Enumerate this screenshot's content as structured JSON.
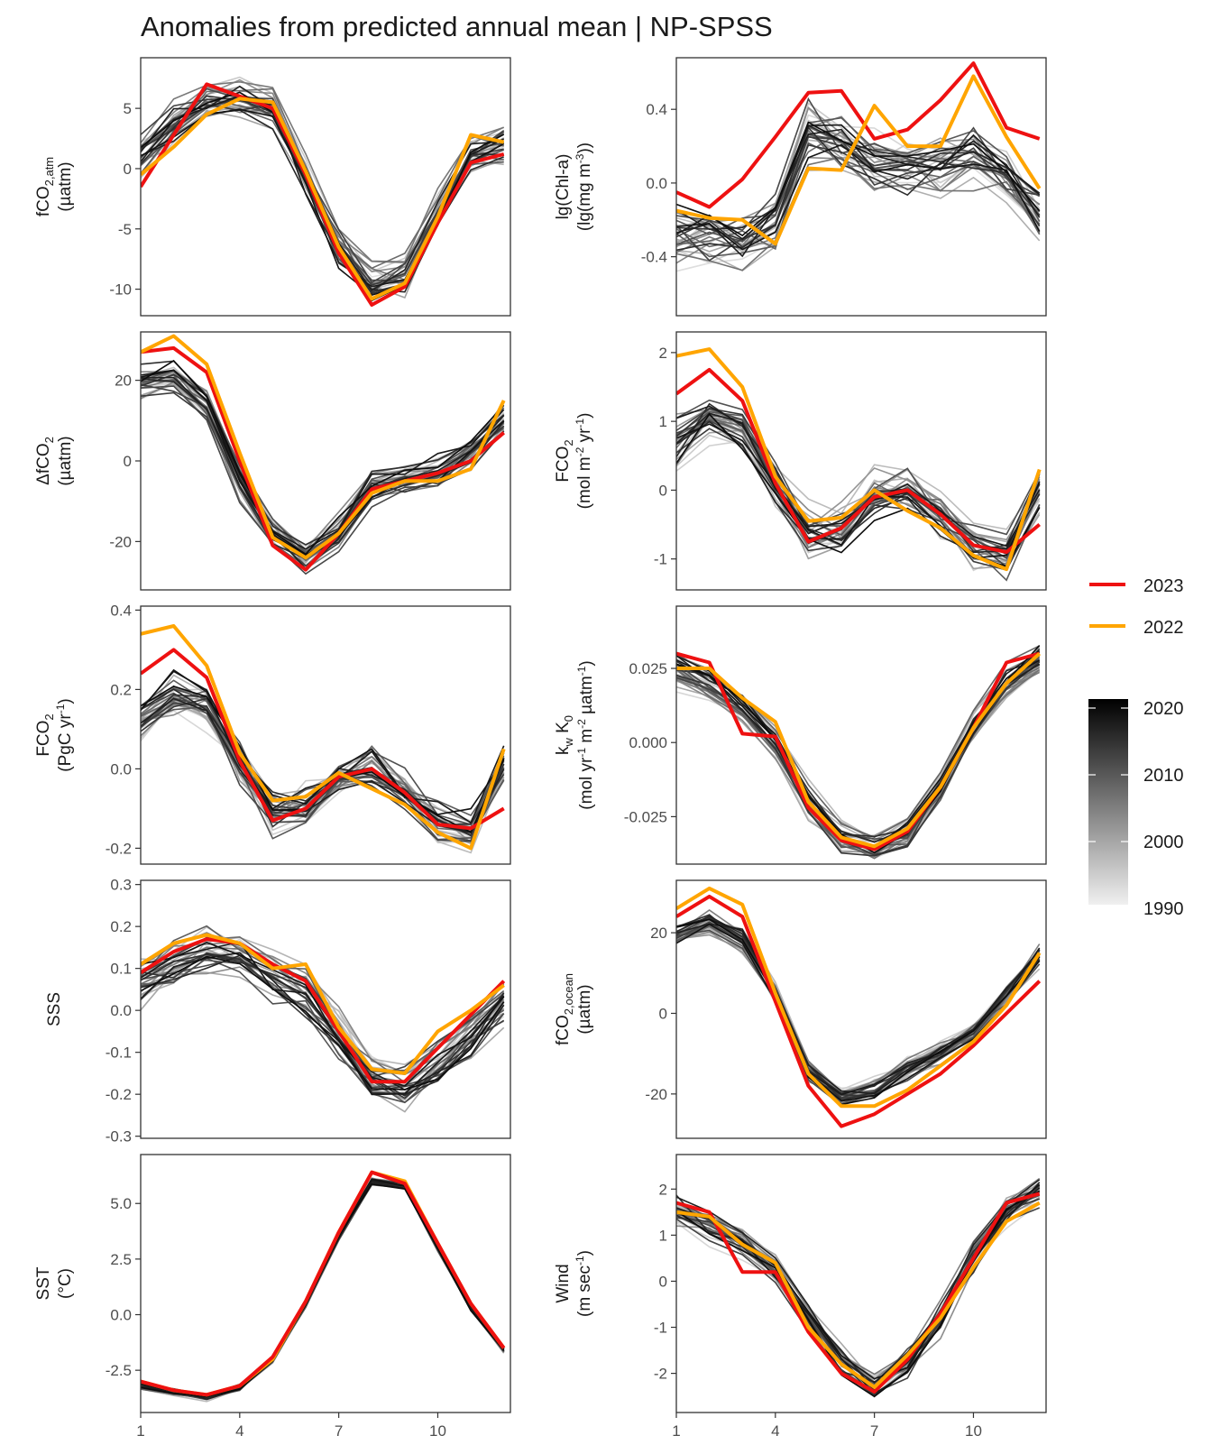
{
  "title": "Anomalies from predicted annual mean | NP-SPSS",
  "legend": {
    "entries": [
      {
        "label": "2023",
        "color": "#ee1111"
      },
      {
        "label": "2022",
        "color": "#ffa500"
      }
    ],
    "colorbar": {
      "labels": [
        "2020",
        "2010",
        "2000",
        "1990"
      ],
      "low_color": "#f0f0f0",
      "high_color": "#000000",
      "range": [
        1990,
        2021
      ]
    }
  },
  "x_ticks": [
    "1",
    "4",
    "7",
    "10"
  ],
  "chart_data": [
    {
      "type": "line",
      "panel": "fCO2atm",
      "ylabel": [
        "fCO",
        "2,atm",
        "(µatm)"
      ],
      "ylim": [
        -12.2,
        9.2
      ],
      "yticks": [
        -10,
        -5,
        0,
        5
      ],
      "ytick_labels": [
        "-10",
        "-5",
        "0",
        "5"
      ],
      "x": [
        1,
        2,
        3,
        4,
        5,
        6,
        7,
        8,
        9,
        10,
        11,
        12
      ],
      "mean": [
        1.0,
        3.5,
        5.2,
        5.8,
        5.0,
        -0.5,
        -6.5,
        -9.5,
        -9.0,
        -4.0,
        1.0,
        2.0
      ],
      "spread": 1.6,
      "series": [
        {
          "name": "2023",
          "values": [
            -1.5,
            2.8,
            7.0,
            6.0,
            5.0,
            -0.5,
            -7.0,
            -11.3,
            -9.8,
            -4.5,
            0.5,
            1.2
          ]
        },
        {
          "name": "2022",
          "values": [
            -0.5,
            1.8,
            4.5,
            5.8,
            5.5,
            -0.2,
            -6.5,
            -10.8,
            -9.5,
            -4.0,
            2.8,
            2.2
          ]
        }
      ]
    },
    {
      "type": "line",
      "panel": "Chl",
      "ylabel": [
        "lg(Chl-a)",
        "(lg(mg m-3))"
      ],
      "ylim": [
        -0.72,
        0.68
      ],
      "yticks": [
        -0.4,
        0.0,
        0.4
      ],
      "ytick_labels": [
        "-0.4",
        "0.0",
        "0.4"
      ],
      "x": [
        1,
        2,
        3,
        4,
        5,
        6,
        7,
        8,
        9,
        10,
        11,
        12
      ],
      "mean": [
        -0.3,
        -0.3,
        -0.33,
        -0.22,
        0.28,
        0.22,
        0.1,
        0.08,
        0.08,
        0.15,
        0.05,
        -0.2
      ],
      "spread": 0.16,
      "series": [
        {
          "name": "2023",
          "values": [
            -0.05,
            -0.13,
            0.02,
            0.25,
            0.49,
            0.5,
            0.24,
            0.29,
            0.45,
            0.65,
            0.3,
            0.24
          ]
        },
        {
          "name": "2022",
          "values": [
            -0.15,
            -0.19,
            -0.2,
            -0.33,
            0.08,
            0.07,
            0.42,
            0.2,
            0.2,
            0.58,
            0.25,
            -0.03
          ]
        }
      ]
    },
    {
      "type": "line",
      "panel": "dfCO2",
      "ylabel": [
        "ΔfCO",
        "2",
        "(µatm)"
      ],
      "ylim": [
        -32,
        32
      ],
      "yticks": [
        -20,
        0,
        20
      ],
      "ytick_labels": [
        "-20",
        "0",
        "20"
      ],
      "x": [
        1,
        2,
        3,
        4,
        5,
        6,
        7,
        8,
        9,
        10,
        11,
        12
      ],
      "mean": [
        19,
        21,
        14,
        -5,
        -18,
        -24,
        -18,
        -6,
        -4,
        -3,
        2,
        10
      ],
      "spread": 4,
      "series": [
        {
          "name": "2023",
          "values": [
            27,
            28,
            22,
            0,
            -21,
            -27,
            -18,
            -7,
            -5,
            -3,
            0,
            7
          ]
        },
        {
          "name": "2022",
          "values": [
            27,
            31,
            24,
            2,
            -19,
            -24,
            -18,
            -8,
            -5,
            -5,
            -2,
            15
          ]
        }
      ]
    },
    {
      "type": "line",
      "panel": "FCO2mol",
      "ylabel": [
        "FCO",
        "2",
        "(mol m-2 yr-1)"
      ],
      "ylim": [
        -1.45,
        2.3
      ],
      "yticks": [
        -1,
        0,
        1,
        2
      ],
      "ytick_labels": [
        "-1",
        "0",
        "1",
        "2"
      ],
      "x": [
        1,
        2,
        3,
        4,
        5,
        6,
        7,
        8,
        9,
        10,
        11,
        12
      ],
      "mean": [
        0.7,
        1.1,
        0.9,
        0.1,
        -0.6,
        -0.55,
        -0.05,
        0.05,
        -0.35,
        -0.8,
        -0.9,
        0.0
      ],
      "spread": 0.35,
      "series": [
        {
          "name": "2023",
          "values": [
            1.4,
            1.75,
            1.3,
            0.1,
            -0.75,
            -0.55,
            -0.1,
            0.0,
            -0.35,
            -0.8,
            -0.9,
            -0.5
          ]
        },
        {
          "name": "2022",
          "values": [
            1.95,
            2.05,
            1.5,
            0.2,
            -0.45,
            -0.4,
            0.0,
            -0.3,
            -0.55,
            -0.95,
            -1.15,
            0.3
          ]
        }
      ]
    },
    {
      "type": "line",
      "panel": "FCO2PgC",
      "ylabel": [
        "FCO",
        "2",
        "(PgC yr-1)"
      ],
      "ylim": [
        -0.24,
        0.41
      ],
      "yticks": [
        -0.2,
        0.0,
        0.2,
        0.4
      ],
      "ytick_labels": [
        "-0.2",
        "0.0",
        "0.2",
        "0.4"
      ],
      "x": [
        1,
        2,
        3,
        4,
        5,
        6,
        7,
        8,
        9,
        10,
        11,
        12
      ],
      "mean": [
        0.12,
        0.18,
        0.15,
        0.01,
        -0.11,
        -0.1,
        -0.02,
        0.0,
        -0.06,
        -0.14,
        -0.16,
        0.0
      ],
      "spread": 0.06,
      "series": [
        {
          "name": "2023",
          "values": [
            0.24,
            0.3,
            0.23,
            0.02,
            -0.13,
            -0.1,
            -0.02,
            0.0,
            -0.06,
            -0.14,
            -0.15,
            -0.1
          ]
        },
        {
          "name": "2022",
          "values": [
            0.34,
            0.36,
            0.26,
            0.04,
            -0.08,
            -0.07,
            -0.01,
            -0.05,
            -0.09,
            -0.16,
            -0.2,
            0.05
          ]
        }
      ]
    },
    {
      "type": "line",
      "panel": "kwK0",
      "ylabel": [
        "kw K0",
        "(mol yr-1 m-2 µatm-1)"
      ],
      "ylim": [
        -0.041,
        0.046
      ],
      "yticks": [
        -0.025,
        0.0,
        0.025
      ],
      "ytick_labels": [
        "-0.025",
        "0.000",
        "0.025"
      ],
      "x": [
        1,
        2,
        3,
        4,
        5,
        6,
        7,
        8,
        9,
        10,
        11,
        12
      ],
      "mean": [
        0.025,
        0.02,
        0.012,
        0.0,
        -0.02,
        -0.032,
        -0.035,
        -0.03,
        -0.015,
        0.005,
        0.02,
        0.028
      ],
      "spread": 0.005,
      "series": [
        {
          "name": "2023",
          "values": [
            0.03,
            0.027,
            0.003,
            0.002,
            -0.022,
            -0.033,
            -0.036,
            -0.03,
            -0.015,
            0.005,
            0.027,
            0.03
          ]
        },
        {
          "name": "2022",
          "values": [
            0.025,
            0.025,
            0.015,
            0.007,
            -0.02,
            -0.032,
            -0.035,
            -0.029,
            -0.015,
            0.005,
            0.02,
            0.03
          ]
        }
      ]
    },
    {
      "type": "line",
      "panel": "SSS",
      "ylabel": [
        "SSS"
      ],
      "ylim": [
        -0.305,
        0.31
      ],
      "yticks": [
        -0.3,
        -0.2,
        -0.1,
        0.0,
        0.1,
        0.2,
        0.3
      ],
      "ytick_labels": [
        "-0.3",
        "-0.2",
        "-0.1",
        "0.0",
        "0.1",
        "0.2",
        "0.3"
      ],
      "x": [
        1,
        2,
        3,
        4,
        5,
        6,
        7,
        8,
        9,
        10,
        11,
        12
      ],
      "mean": [
        0.07,
        0.11,
        0.14,
        0.13,
        0.08,
        0.04,
        -0.06,
        -0.16,
        -0.18,
        -0.13,
        -0.06,
        0.02
      ],
      "spread": 0.05,
      "series": [
        {
          "name": "2023",
          "values": [
            0.09,
            0.14,
            0.17,
            0.16,
            0.11,
            0.07,
            -0.05,
            -0.17,
            -0.17,
            -0.09,
            -0.01,
            0.07
          ]
        },
        {
          "name": "2022",
          "values": [
            0.11,
            0.16,
            0.18,
            0.16,
            0.1,
            0.11,
            -0.04,
            -0.14,
            -0.15,
            -0.05,
            0.0,
            0.06
          ]
        }
      ]
    },
    {
      "type": "line",
      "panel": "fCO2ocean",
      "ylabel": [
        "fCO",
        "2,ocean",
        "(µatm)"
      ],
      "ylim": [
        -31,
        33
      ],
      "yticks": [
        -20,
        0,
        20
      ],
      "ytick_labels": [
        "-20",
        "0",
        "20"
      ],
      "x": [
        1,
        2,
        3,
        4,
        5,
        6,
        7,
        8,
        9,
        10,
        11,
        12
      ],
      "mean": [
        19,
        22,
        18,
        5,
        -14,
        -21,
        -19,
        -14,
        -10,
        -5,
        4,
        14
      ],
      "spread": 3,
      "series": [
        {
          "name": "2023",
          "values": [
            24,
            29,
            24,
            3,
            -18,
            -28,
            -25,
            -20,
            -15,
            -8,
            0,
            8
          ]
        },
        {
          "name": "2022",
          "values": [
            26,
            31,
            27,
            5,
            -15,
            -23,
            -23,
            -19,
            -13,
            -7,
            2,
            15
          ]
        }
      ]
    },
    {
      "type": "line",
      "panel": "SST",
      "ylabel": [
        "SST",
        "(°C)"
      ],
      "ylim": [
        -4.4,
        7.2
      ],
      "yticks": [
        -2.5,
        0.0,
        2.5,
        5.0
      ],
      "ytick_labels": [
        "-2.5",
        "0.0",
        "2.5",
        "5.0"
      ],
      "x": [
        1,
        2,
        3,
        4,
        5,
        6,
        7,
        8,
        9,
        10,
        11,
        12
      ],
      "mean": [
        -3.2,
        -3.5,
        -3.7,
        -3.3,
        -2.0,
        0.5,
        3.5,
        6.0,
        5.8,
        3.0,
        0.3,
        -1.6
      ],
      "spread": 0.15,
      "series": [
        {
          "name": "2022",
          "values": [
            -3.0,
            -3.4,
            -3.6,
            -3.2,
            -2.0,
            0.6,
            3.7,
            6.4,
            6.0,
            3.2,
            0.5,
            -1.5
          ]
        },
        {
          "name": "2023",
          "values": [
            -3.0,
            -3.4,
            -3.6,
            -3.2,
            -1.9,
            0.6,
            3.7,
            6.4,
            5.9,
            3.2,
            0.5,
            -1.5
          ]
        }
      ]
    },
    {
      "type": "line",
      "panel": "Wind",
      "ylabel": [
        "Wind",
        "(m sec-1)"
      ],
      "ylim": [
        -2.85,
        2.75
      ],
      "yticks": [
        -2,
        -1,
        0,
        1,
        2
      ],
      "ytick_labels": [
        "-2",
        "-1",
        "0",
        "1",
        "2"
      ],
      "x": [
        1,
        2,
        3,
        4,
        5,
        6,
        7,
        8,
        9,
        10,
        11,
        12
      ],
      "mean": [
        1.5,
        1.2,
        0.8,
        0.2,
        -0.8,
        -1.8,
        -2.3,
        -1.8,
        -0.8,
        0.5,
        1.5,
        1.9
      ],
      "spread": 0.35,
      "series": [
        {
          "name": "2023",
          "values": [
            1.7,
            1.5,
            0.2,
            0.2,
            -1.1,
            -2.0,
            -2.4,
            -1.7,
            -0.7,
            0.5,
            1.7,
            1.9
          ]
        },
        {
          "name": "2022",
          "values": [
            1.5,
            1.4,
            0.8,
            0.4,
            -1.0,
            -1.8,
            -2.3,
            -1.6,
            -0.8,
            0.3,
            1.3,
            1.7
          ]
        }
      ]
    }
  ]
}
